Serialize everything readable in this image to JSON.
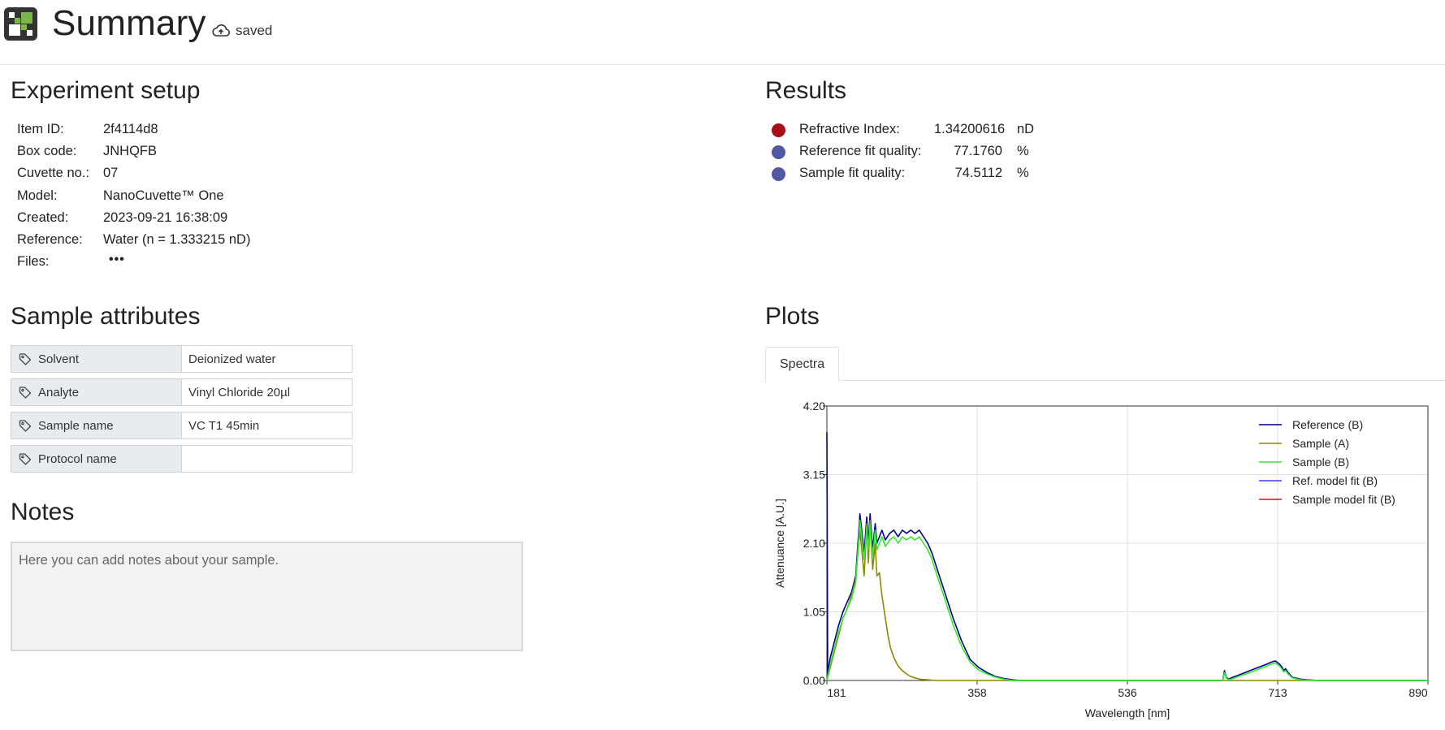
{
  "header": {
    "title": "Summary",
    "status": "saved",
    "status_icon": "cloud-upload-icon",
    "logo_icon": "checkerboard-logo"
  },
  "experiment_setup": {
    "title": "Experiment setup",
    "rows": [
      {
        "key": "Item ID:",
        "value": "2f4114d8"
      },
      {
        "key": "Box code:",
        "value": "JNHQFB"
      },
      {
        "key": "Cuvette no.:",
        "value": "07"
      },
      {
        "key": "Model:",
        "value": "NanoCuvette™ One"
      },
      {
        "key": "Created:",
        "value": "2023-09-21 16:38:09"
      },
      {
        "key": "Reference:",
        "value": "Water (n = 1.333215 nD)"
      },
      {
        "key": "Files:",
        "value": "•••"
      }
    ]
  },
  "results": {
    "title": "Results",
    "rows": [
      {
        "label": "Refractive Index:",
        "value": "1.34200616",
        "unit": "nD",
        "color": "#a50f15"
      },
      {
        "label": "Reference fit quality:",
        "value": "77.1760",
        "unit": "%",
        "color": "#5158a0"
      },
      {
        "label": "Sample fit quality:",
        "value": "74.5112",
        "unit": "%",
        "color": "#5158a0"
      }
    ]
  },
  "sample_attributes": {
    "title": "Sample attributes",
    "rows": [
      {
        "key": "Solvent",
        "value": "Deionized water"
      },
      {
        "key": "Analyte",
        "value": "Vinyl Chloride 20µl"
      },
      {
        "key": "Sample name",
        "value": "VC T1 45min"
      },
      {
        "key": "Protocol name",
        "value": ""
      }
    ]
  },
  "notes": {
    "title": "Notes",
    "placeholder": "Here you can add notes about your sample."
  },
  "plots": {
    "title": "Plots",
    "tabs": [
      "Spectra"
    ],
    "active_tab": "Spectra"
  },
  "chart_data": {
    "type": "line",
    "title": "",
    "xlabel": "Wavelength [nm]",
    "ylabel": "Attenuance [A.U.]",
    "xlim": [
      181,
      890
    ],
    "ylim": [
      0,
      4.2
    ],
    "x_ticks": [
      "181",
      "358",
      "536",
      "713",
      "890"
    ],
    "y_ticks": [
      "0.00",
      "1.05",
      "2.10",
      "3.15",
      "4.20"
    ],
    "grid": true,
    "legend_position": "top-right",
    "series": [
      {
        "name": "Reference (B)",
        "color": "#00008b",
        "x": [
          181,
          182,
          185,
          190,
          195,
          200,
          205,
          210,
          215,
          220,
          225,
          228,
          230,
          232,
          235,
          238,
          240,
          243,
          246,
          250,
          255,
          260,
          265,
          270,
          275,
          280,
          285,
          290,
          295,
          300,
          305,
          310,
          320,
          330,
          340,
          350,
          360,
          370,
          380,
          390,
          400,
          410,
          420,
          430,
          450,
          500,
          600,
          648,
          650,
          652,
          655,
          660,
          670,
          680,
          690,
          700,
          705,
          710,
          715,
          718,
          720,
          722,
          725,
          730,
          740,
          760,
          800,
          850,
          890
        ],
        "y": [
          3.8,
          0.1,
          0.35,
          0.6,
          0.85,
          1.05,
          1.2,
          1.35,
          1.6,
          2.55,
          1.95,
          2.5,
          2.1,
          2.55,
          2.0,
          2.4,
          2.1,
          2.2,
          2.3,
          2.15,
          2.25,
          2.3,
          2.2,
          2.3,
          2.25,
          2.3,
          2.25,
          2.3,
          2.2,
          2.1,
          1.95,
          1.75,
          1.35,
          0.95,
          0.6,
          0.32,
          0.2,
          0.12,
          0.06,
          0.03,
          0.01,
          0.0,
          0.0,
          0.0,
          0.0,
          0.0,
          0.0,
          0.0,
          0.15,
          0.05,
          0.02,
          0.05,
          0.1,
          0.15,
          0.2,
          0.25,
          0.28,
          0.3,
          0.25,
          0.2,
          0.15,
          0.18,
          0.12,
          0.05,
          0.02,
          0.0,
          0.0,
          0.0,
          0.0
        ]
      },
      {
        "name": "Sample (A)",
        "color": "#8b8b00",
        "x": [
          181,
          185,
          190,
          195,
          200,
          205,
          210,
          215,
          220,
          225,
          228,
          230,
          232,
          235,
          238,
          240,
          243,
          246,
          250,
          253,
          256,
          260,
          265,
          270,
          275,
          280,
          290,
          300,
          310,
          320,
          330,
          400,
          890
        ],
        "y": [
          0.0,
          0.2,
          0.45,
          0.7,
          0.95,
          1.1,
          1.3,
          1.55,
          2.3,
          1.6,
          2.4,
          1.8,
          2.45,
          1.7,
          2.1,
          1.6,
          1.65,
          1.3,
          0.95,
          0.7,
          0.5,
          0.35,
          0.22,
          0.15,
          0.1,
          0.06,
          0.02,
          0.01,
          0.0,
          0.0,
          0.0,
          0.0,
          0.0
        ]
      },
      {
        "name": "Sample (B)",
        "color": "#32e832",
        "x": [
          181,
          185,
          190,
          195,
          200,
          205,
          210,
          215,
          220,
          225,
          228,
          230,
          232,
          235,
          238,
          240,
          243,
          246,
          250,
          255,
          260,
          265,
          270,
          275,
          280,
          285,
          290,
          295,
          300,
          305,
          310,
          320,
          330,
          340,
          350,
          360,
          370,
          380,
          390,
          400,
          420,
          450,
          500,
          600,
          648,
          650,
          652,
          655,
          660,
          670,
          680,
          690,
          700,
          705,
          710,
          715,
          718,
          720,
          722,
          725,
          730,
          740,
          760,
          890
        ],
        "y": [
          0.0,
          0.25,
          0.5,
          0.75,
          0.95,
          1.1,
          1.25,
          1.5,
          2.45,
          1.85,
          2.35,
          2.0,
          2.4,
          1.9,
          2.3,
          2.0,
          2.1,
          2.2,
          2.05,
          2.15,
          2.2,
          2.1,
          2.2,
          2.15,
          2.2,
          2.15,
          2.2,
          2.1,
          2.0,
          1.85,
          1.65,
          1.25,
          0.85,
          0.52,
          0.28,
          0.16,
          0.1,
          0.05,
          0.02,
          0.0,
          0.0,
          0.0,
          0.0,
          0.0,
          0.0,
          0.12,
          0.04,
          0.01,
          0.03,
          0.08,
          0.12,
          0.17,
          0.22,
          0.25,
          0.27,
          0.22,
          0.17,
          0.13,
          0.15,
          0.1,
          0.04,
          0.01,
          0.0,
          0.0
        ]
      },
      {
        "name": "Ref. model fit (B)",
        "color": "#3a3aff",
        "x": [],
        "y": []
      },
      {
        "name": "Sample model fit (B)",
        "color": "#ff0000",
        "x": [],
        "y": []
      }
    ]
  }
}
